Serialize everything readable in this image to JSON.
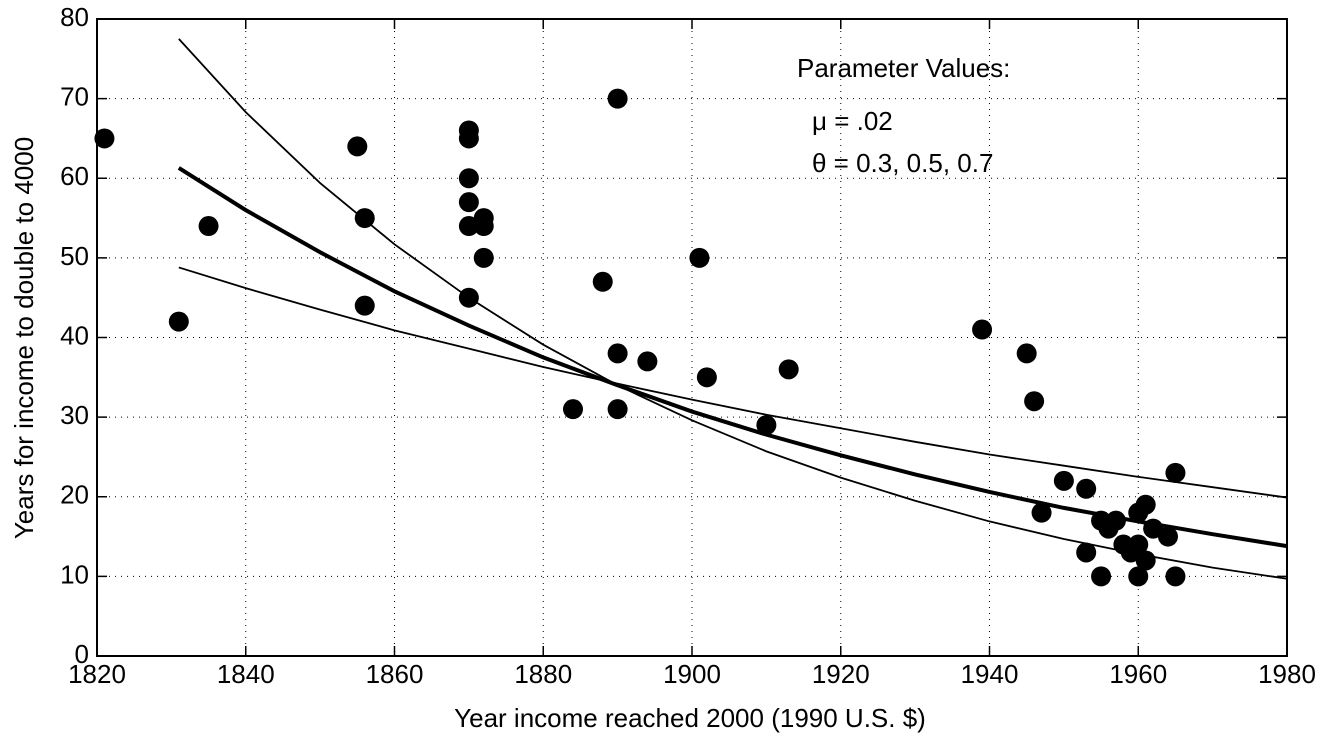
{
  "chart_data": {
    "type": "scatter",
    "xlabel": "Year income reached 2000 (1990 U.S. $)",
    "ylabel": "Years for income to double to 4000",
    "annotations": [
      "Parameter Values:",
      "μ = .02",
      "θ = 0.3, 0.5, 0.7"
    ],
    "xlim": [
      1820,
      1980
    ],
    "xticks": [
      1820,
      1840,
      1860,
      1880,
      1900,
      1920,
      1940,
      1960,
      1980
    ],
    "ylim": [
      0,
      80
    ],
    "yticks": [
      0,
      10,
      20,
      30,
      40,
      50,
      60,
      70,
      80
    ],
    "grid": true,
    "series": [
      {
        "mode": "markers",
        "color": "#000000",
        "x": [
          1821,
          1831,
          1835,
          1855,
          1856,
          1856,
          1870,
          1870,
          1870,
          1870,
          1870,
          1870,
          1872,
          1872,
          1872,
          1888,
          1884,
          1890,
          1890,
          1890,
          1894,
          1901,
          1902,
          1910,
          1913,
          1939,
          1945,
          1946,
          1947,
          1950,
          1953,
          1953,
          1955,
          1955,
          1956,
          1957,
          1958,
          1959,
          1960,
          1960,
          1960,
          1961,
          1961,
          1962,
          1964,
          1965,
          1965
        ],
        "values": [
          65,
          42,
          54,
          64,
          55,
          44,
          66,
          65,
          60,
          57,
          54,
          45,
          55,
          54,
          50,
          47,
          31,
          70,
          38,
          31,
          37,
          50,
          35,
          29,
          36,
          41,
          38,
          32,
          18,
          22,
          21,
          13,
          17,
          10,
          16,
          17,
          14,
          13,
          18,
          14,
          10,
          19,
          12,
          16,
          15,
          23,
          10
        ]
      },
      {
        "mode": "line",
        "color": "#000000",
        "width": 1.8,
        "x": [
          1831,
          1840,
          1850,
          1860,
          1870,
          1880,
          1890,
          1900,
          1910,
          1920,
          1930,
          1940,
          1950,
          1960,
          1970,
          1980
        ],
        "values": [
          77.5,
          68.3,
          59.4,
          51.7,
          45.0,
          39.1,
          34.0,
          29.6,
          25.7,
          22.4,
          19.5,
          16.9,
          14.7,
          12.8,
          11.1,
          9.7
        ]
      },
      {
        "mode": "line",
        "color": "#000000",
        "width": 4,
        "x": [
          1831,
          1840,
          1850,
          1860,
          1870,
          1880,
          1890,
          1900,
          1910,
          1920,
          1930,
          1940,
          1950,
          1960,
          1970,
          1980
        ],
        "values": [
          61.3,
          56.0,
          50.7,
          45.8,
          41.5,
          37.5,
          34.0,
          30.7,
          27.8,
          25.2,
          22.8,
          20.6,
          18.6,
          16.9,
          15.3,
          13.8
        ]
      },
      {
        "mode": "line",
        "color": "#000000",
        "width": 1.8,
        "x": [
          1831,
          1840,
          1850,
          1860,
          1870,
          1880,
          1890,
          1900,
          1910,
          1920,
          1930,
          1940,
          1950,
          1960,
          1970,
          1980
        ],
        "values": [
          48.8,
          46.2,
          43.5,
          40.9,
          38.6,
          36.3,
          34.2,
          32.2,
          30.3,
          28.6,
          26.9,
          25.3,
          23.9,
          22.5,
          21.2,
          19.9
        ]
      }
    ]
  }
}
